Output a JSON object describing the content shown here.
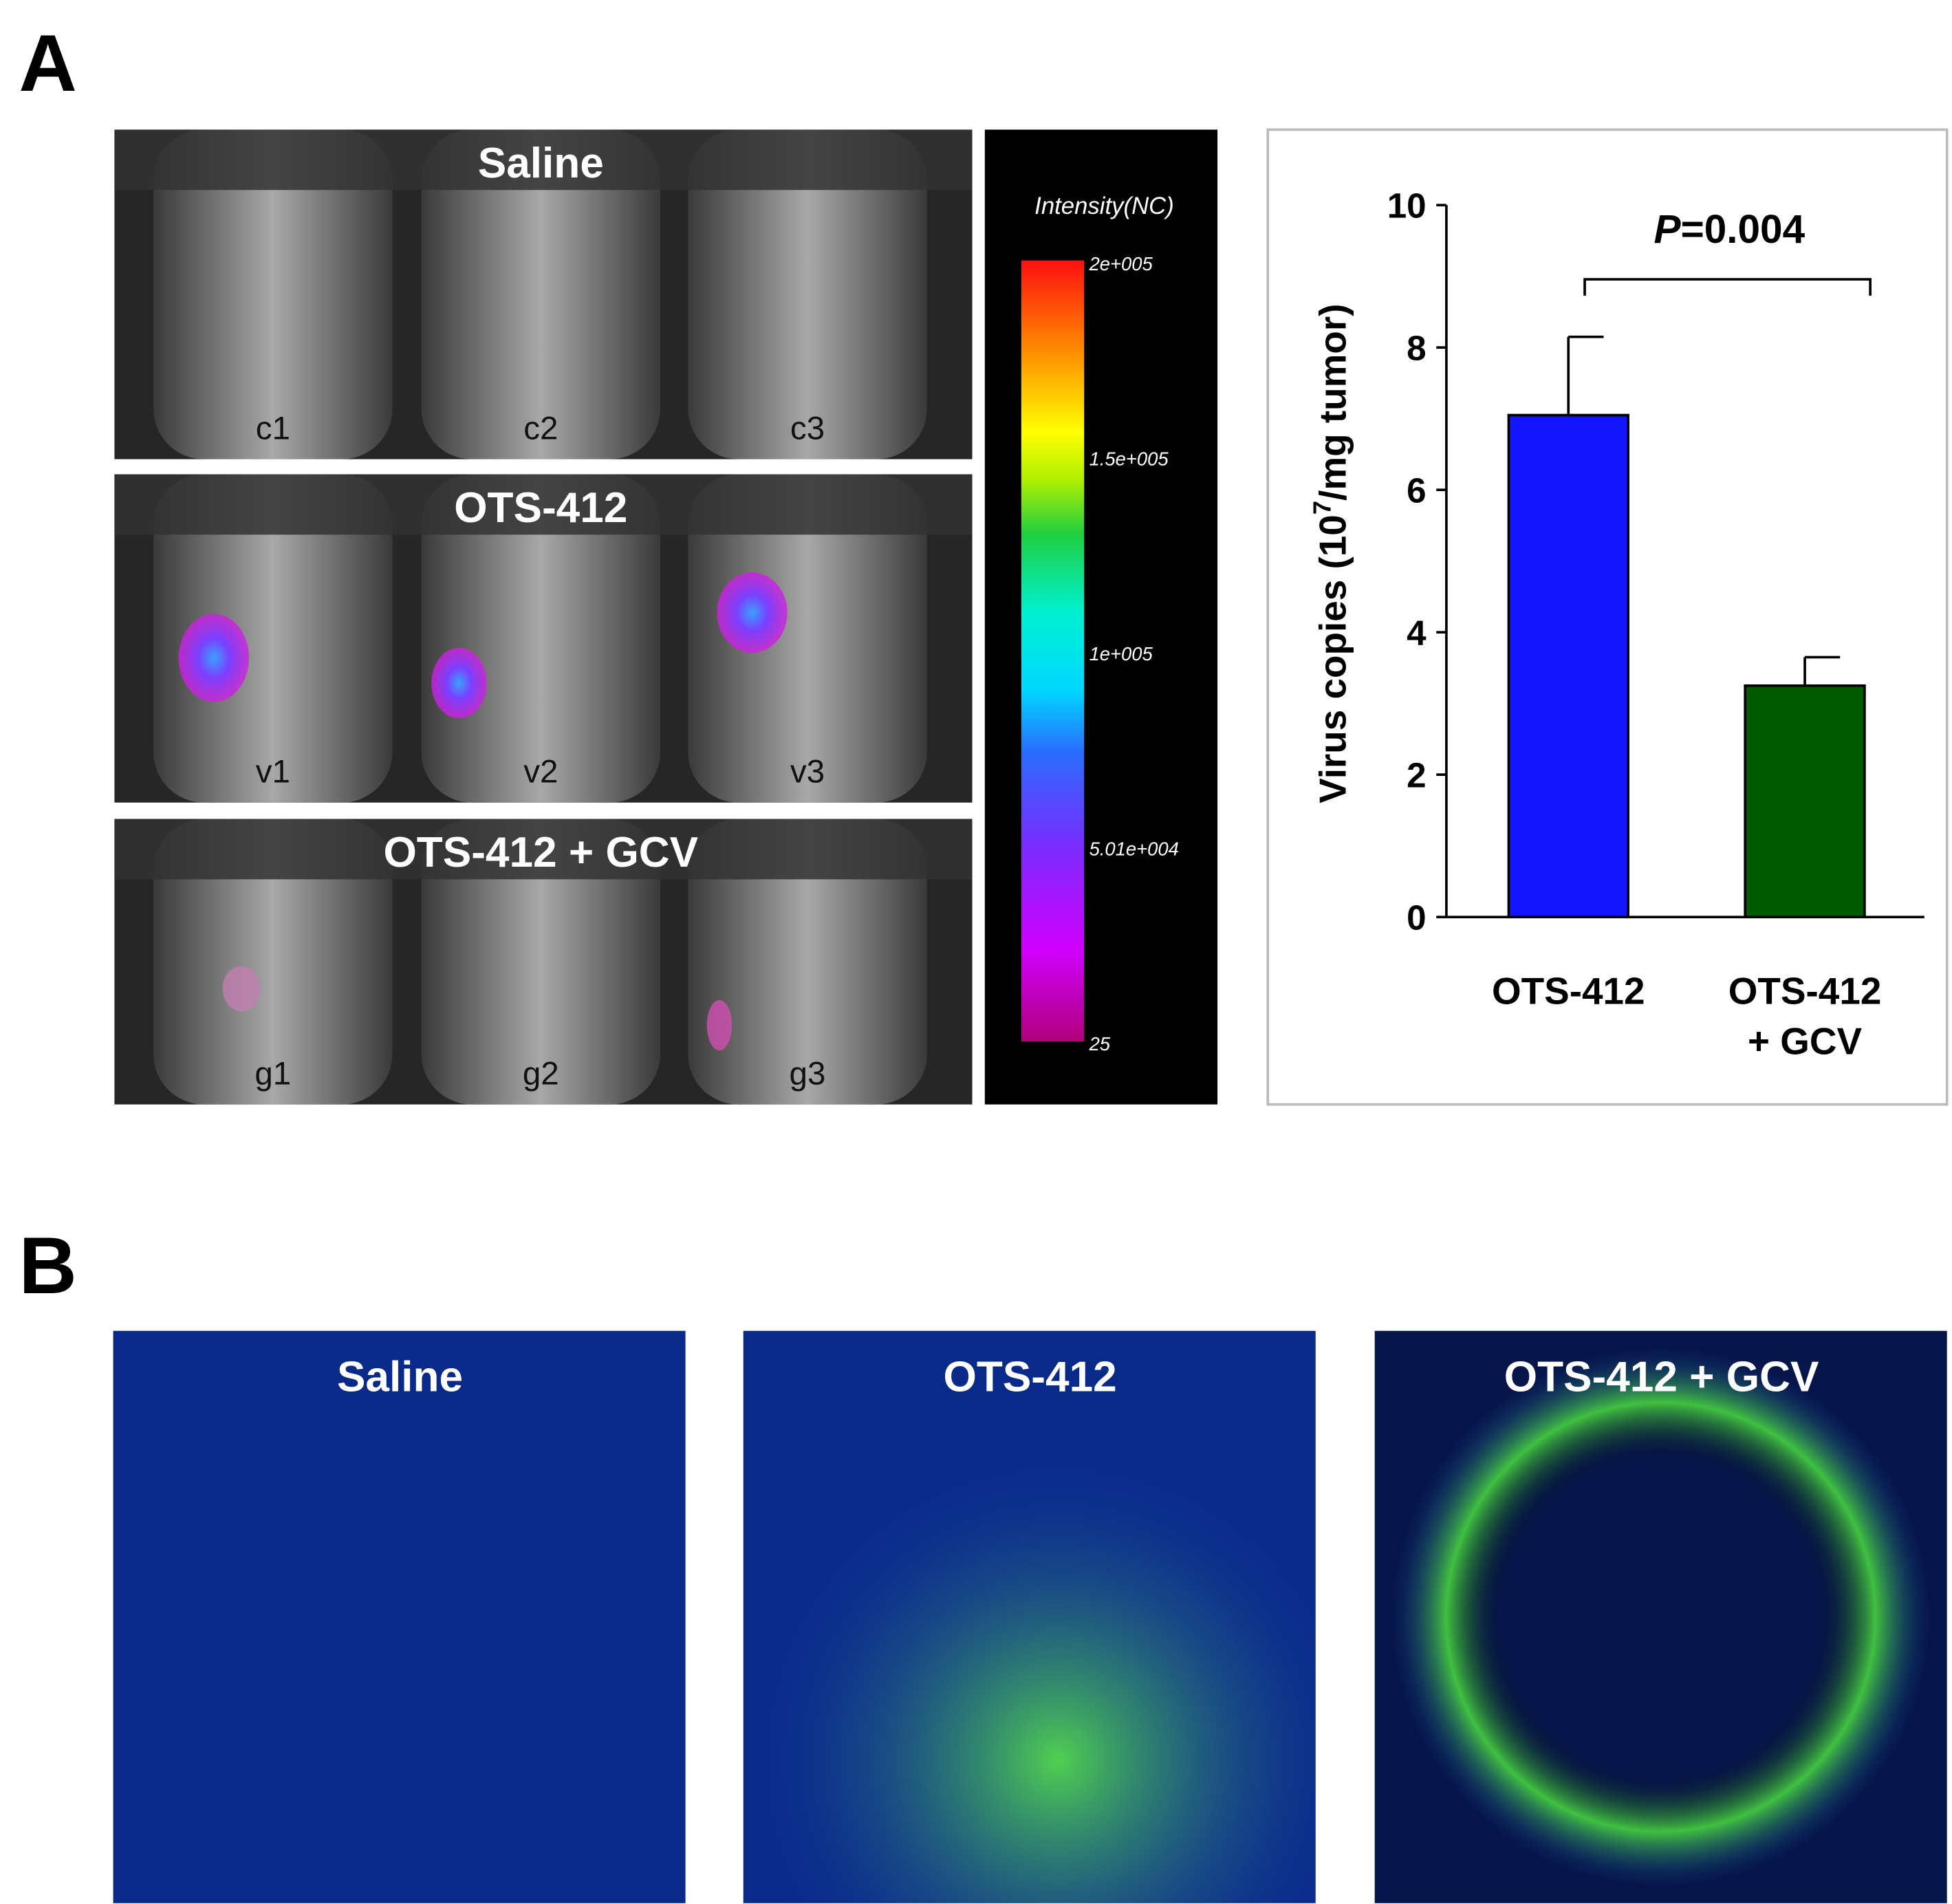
{
  "panel_a": {
    "label": "A",
    "imaging": {
      "rows": [
        {
          "title": "Saline",
          "samples": [
            "c1",
            "c2",
            "c3"
          ]
        },
        {
          "title": "OTS-412",
          "samples": [
            "v1",
            "v2",
            "v3"
          ]
        },
        {
          "title": "OTS-412 + GCV",
          "samples": [
            "g1",
            "g2",
            "g3"
          ]
        }
      ],
      "colorbar": {
        "title": "Intensity(NC)",
        "labels": [
          "2e+005",
          "1.5e+005",
          "1e+005",
          "5.01e+004",
          "25"
        ]
      }
    }
  },
  "chart_data": {
    "type": "bar",
    "y_label": [
      "Virus copies (10",
      "7",
      "/mg tumor)"
    ],
    "annotation": [
      "P",
      "=0.004"
    ],
    "categories": [
      "OTS-412",
      "OTS-412 + GCV"
    ],
    "values": [
      7.05,
      3.25
    ],
    "errors": [
      1.1,
      0.4
    ],
    "colors": [
      "#1414ff",
      "#005a00"
    ],
    "ylim": [
      0,
      10
    ],
    "yticks": [
      0,
      2,
      4,
      6,
      8,
      10
    ]
  },
  "panel_b": {
    "label": "B",
    "images": [
      "Saline",
      "OTS-412",
      "OTS-412 + GCV"
    ]
  }
}
